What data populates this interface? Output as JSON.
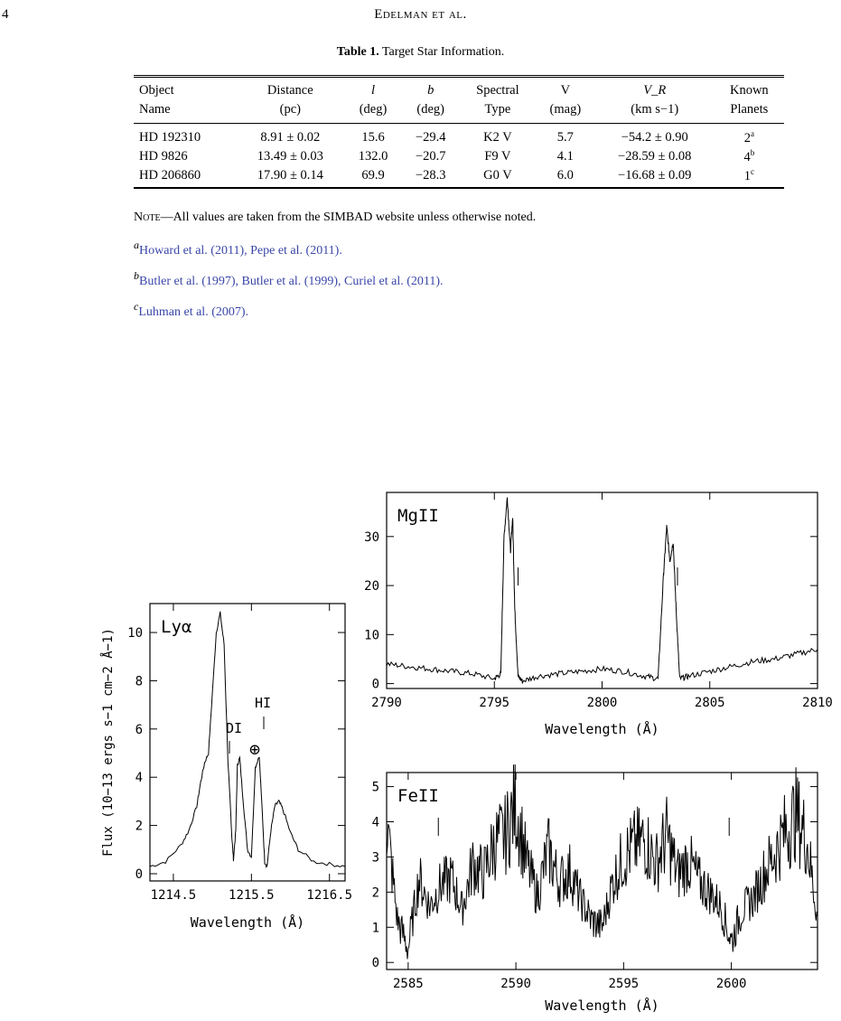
{
  "page_number": "4",
  "running_head": "Edelman et al.",
  "table": {
    "label": "Table 1.",
    "title": "Target Star Information.",
    "headers_top": [
      "Object",
      "Distance",
      "l",
      "b",
      "Spectral",
      "V",
      "V_R",
      "Known"
    ],
    "headers_bottom": [
      "Name",
      "(pc)",
      "(deg)",
      "(deg)",
      "Type",
      "(mag)",
      "(km s−1)",
      "Planets"
    ],
    "rows": [
      {
        "name": "HD 192310",
        "distance": "8.91 ± 0.02",
        "l": "15.6",
        "b": "−29.4",
        "sptype": "K2 V",
        "v": "5.7",
        "vr": "−54.2 ± 0.90",
        "planets": "2",
        "planets_note": "a"
      },
      {
        "name": "HD 9826",
        "distance": "13.49 ± 0.03",
        "l": "132.0",
        "b": "−20.7",
        "sptype": "F9 V",
        "v": "4.1",
        "vr": "−28.59 ± 0.08",
        "planets": "4",
        "planets_note": "b"
      },
      {
        "name": "HD 206860",
        "distance": "17.90 ± 0.14",
        "l": "69.9",
        "b": "−28.3",
        "sptype": "G0 V",
        "v": "6.0",
        "vr": "−16.68 ± 0.09",
        "planets": "1",
        "planets_note": "c"
      }
    ]
  },
  "notes": {
    "note_label": "Note",
    "note_text": "—All values are taken from the SIMBAD website unless otherwise noted.",
    "a_mark": "a",
    "a_text": "Howard et al. (2011), Pepe et al. (2011).",
    "b_mark": "b",
    "b_text": "Butler et al. (1997), Butler et al. (1999), Curiel et al. (2011).",
    "c_mark": "c",
    "c_text": "Luhman et al. (2007)."
  },
  "chart_data": [
    {
      "type": "line",
      "title": "Lyα",
      "xlabel": "Wavelength (Å)",
      "ylabel": "Flux (10−13 ergs s−1 cm−2 Å−1)",
      "xlim": [
        1214.2,
        1216.7
      ],
      "ylim": [
        -0.3,
        11.2
      ],
      "xticks": [
        "1214.5",
        "1215.5",
        "1216.5"
      ],
      "yticks": [
        "0",
        "2",
        "4",
        "6",
        "8",
        "10"
      ],
      "annotations": [
        "DI",
        "HI",
        "⊕"
      ],
      "x": [
        1214.2,
        1214.4,
        1214.6,
        1214.7,
        1214.8,
        1214.85,
        1214.9,
        1214.95,
        1215.0,
        1215.05,
        1215.1,
        1215.15,
        1215.2,
        1215.23,
        1215.25,
        1215.27,
        1215.3,
        1215.32,
        1215.35,
        1215.4,
        1215.45,
        1215.5,
        1215.55,
        1215.6,
        1215.64,
        1215.67,
        1215.7,
        1215.75,
        1215.8,
        1215.85,
        1215.9,
        1216.0,
        1216.1,
        1216.3,
        1216.5,
        1216.7
      ],
      "y": [
        0.3,
        0.5,
        1.2,
        1.8,
        2.8,
        3.8,
        4.6,
        5.0,
        7.5,
        10.0,
        10.8,
        9.5,
        4.6,
        2.8,
        1.5,
        0.6,
        1.8,
        4.5,
        4.8,
        2.8,
        1.0,
        0.7,
        4.4,
        4.9,
        2.5,
        0.5,
        0.3,
        1.8,
        2.8,
        3.0,
        2.7,
        1.7,
        1.0,
        0.5,
        0.4,
        0.3
      ]
    },
    {
      "type": "line",
      "title": "MgII",
      "xlabel": "Wavelength (Å)",
      "ylabel": "",
      "xlim": [
        2790,
        2810
      ],
      "ylim": [
        -1,
        39
      ],
      "xticks": [
        "2790",
        "2795",
        "2800",
        "2805",
        "2810"
      ],
      "yticks": [
        "0",
        "10",
        "20",
        "30"
      ],
      "markers": [
        2796.1,
        2803.5
      ],
      "x": [
        2790,
        2791,
        2792,
        2793,
        2794,
        2795,
        2795.3,
        2795.45,
        2795.6,
        2795.75,
        2795.85,
        2795.95,
        2796.1,
        2796.3,
        2797,
        2798,
        2799,
        2800,
        2801,
        2802,
        2802.6,
        2802.85,
        2803.0,
        2803.15,
        2803.3,
        2803.45,
        2803.6,
        2804,
        2805,
        2806,
        2807,
        2808,
        2809,
        2810
      ],
      "y": [
        4,
        3.5,
        3,
        2.5,
        2,
        1,
        2,
        30,
        38,
        27,
        34,
        15,
        1.5,
        0.5,
        1.5,
        2,
        2.5,
        3,
        2.5,
        1.5,
        1,
        22,
        32,
        25,
        29,
        14,
        1,
        1.5,
        2.5,
        3.5,
        4.5,
        5,
        6,
        7
      ]
    },
    {
      "type": "line",
      "title": "FeII",
      "xlabel": "Wavelength (Å)",
      "ylabel": "",
      "xlim": [
        2584,
        2604
      ],
      "ylim": [
        -0.2,
        5.4
      ],
      "xticks": [
        "2585",
        "2590",
        "2595",
        "2600"
      ],
      "yticks": [
        "0",
        "1",
        "2",
        "3",
        "4",
        "5"
      ],
      "markers": [
        2586.4,
        2599.9
      ],
      "x": [
        2584,
        2584.5,
        2585,
        2585.5,
        2586,
        2586.5,
        2587,
        2587.5,
        2588,
        2588.5,
        2589,
        2589.5,
        2590,
        2590.5,
        2591,
        2591.5,
        2592,
        2592.5,
        2593,
        2593.5,
        2594,
        2594.5,
        2595,
        2595.5,
        2596,
        2596.5,
        2597,
        2597.5,
        2598,
        2598.5,
        2599,
        2599.5,
        2600,
        2600.5,
        2601,
        2601.5,
        2602,
        2602.5,
        2603,
        2603.5,
        2604
      ],
      "y": [
        4.0,
        1.2,
        0.4,
        2.4,
        1.6,
        2.2,
        2.4,
        1.5,
        2.8,
        2.5,
        3.4,
        3.6,
        4.5,
        2.8,
        1.9,
        3.2,
        2.3,
        2.6,
        1.8,
        1.2,
        1.0,
        2.3,
        3.0,
        3.3,
        3.5,
        2.8,
        3.6,
        2.5,
        2.9,
        2.3,
        2.0,
        1.6,
        0.6,
        1.5,
        1.8,
        2.5,
        3.1,
        3.7,
        4.2,
        3.5,
        1.3
      ]
    }
  ]
}
